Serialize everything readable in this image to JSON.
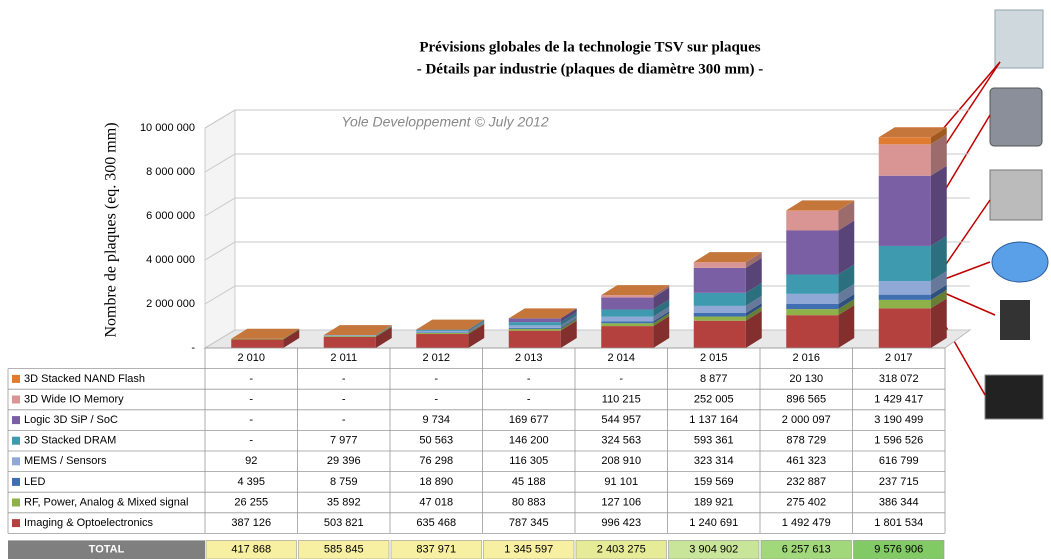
{
  "chart_data": {
    "type": "bar",
    "stacked": true,
    "title": [
      "Prévisions globales de la technologie TSV sur plaques",
      "- Détails par industrie (plaques de diamètre 300 mm) -"
    ],
    "y_label": "Nombre de plaques (eq. 300 mm)",
    "annotation": "Yole Developpement © July 2012",
    "categories": [
      "2 010",
      "2 011",
      "2 012",
      "2 013",
      "2 014",
      "2 015",
      "2 016",
      "2 017"
    ],
    "ylim": [
      0,
      10000000
    ],
    "yticks": [
      {
        "value": 0,
        "label": "-"
      },
      {
        "value": 2000000,
        "label": "2 000 000"
      },
      {
        "value": 4000000,
        "label": "4 000 000"
      },
      {
        "value": 6000000,
        "label": "6 000 000"
      },
      {
        "value": 8000000,
        "label": "8 000 000"
      },
      {
        "value": 10000000,
        "label": "10 000 000"
      }
    ],
    "grid": true,
    "series": [
      {
        "name": "3D Stacked NAND Flash",
        "color": "#e07b2f",
        "values": [
          null,
          null,
          null,
          null,
          null,
          8877,
          20130,
          318072
        ],
        "value_labels": [
          "-",
          "-",
          "-",
          "-",
          "-",
          "8 877",
          "20 130",
          "318 072"
        ]
      },
      {
        "name": "3D Wide IO Memory",
        "color": "#d99594",
        "values": [
          null,
          null,
          null,
          null,
          110215,
          252005,
          896565,
          1429417
        ],
        "value_labels": [
          "-",
          "-",
          "-",
          "-",
          "110 215",
          "252 005",
          "896 565",
          "1 429 417"
        ]
      },
      {
        "name": "Logic 3D SiP / SoC",
        "color": "#7b5fa5",
        "values": [
          null,
          null,
          9734,
          169677,
          544957,
          1137164,
          2000097,
          3190499
        ],
        "value_labels": [
          "-",
          "-",
          "9 734",
          "169 677",
          "544 957",
          "1 137 164",
          "2 000 097",
          "3 190 499"
        ]
      },
      {
        "name": "3D Stacked DRAM",
        "color": "#3d9aaf",
        "values": [
          null,
          7977,
          50563,
          146200,
          324563,
          593361,
          878729,
          1596526
        ],
        "value_labels": [
          "-",
          "7 977",
          "50 563",
          "146 200",
          "324 563",
          "593 361",
          "878 729",
          "1 596 526"
        ]
      },
      {
        "name": "MEMS / Sensors",
        "color": "#8fa8d6",
        "values": [
          92,
          29396,
          76298,
          116305,
          208910,
          323314,
          461323,
          616799
        ],
        "value_labels": [
          "92",
          "29 396",
          "76 298",
          "116 305",
          "208 910",
          "323 314",
          "461 323",
          "616 799"
        ]
      },
      {
        "name": "LED",
        "color": "#3f6fb0",
        "values": [
          4395,
          8759,
          18890,
          45188,
          91101,
          159569,
          232887,
          237715
        ],
        "value_labels": [
          "4 395",
          "8 759",
          "18 890",
          "45 188",
          "91 101",
          "159 569",
          "232 887",
          "237 715"
        ]
      },
      {
        "name": "RF, Power, Analog & Mixed signal",
        "color": "#8fb14a",
        "values": [
          26255,
          35892,
          47018,
          80883,
          127106,
          189921,
          275402,
          386344
        ],
        "value_labels": [
          "26 255",
          "35 892",
          "47 018",
          "80 883",
          "127 106",
          "189 921",
          "275 402",
          "386 344"
        ]
      },
      {
        "name": "Imaging & Optoelectronics",
        "color": "#b5413f",
        "values": [
          387126,
          503821,
          635468,
          787345,
          996423,
          1240691,
          1492479,
          1801534
        ],
        "value_labels": [
          "387 126",
          "503 821",
          "635 468",
          "787 345",
          "996 423",
          "1 240 691",
          "1 492 479",
          "1 801 534"
        ]
      }
    ],
    "totals": {
      "label": "TOTAL",
      "values": [
        417868,
        585845,
        837971,
        1345597,
        2403275,
        3904902,
        6257613,
        9576906
      ],
      "value_labels": [
        "417 868",
        "585 845",
        "837 971",
        "1 345 597",
        "2 403 275",
        "3 904 902",
        "6 257 613",
        "9 576 906"
      ],
      "colors": [
        "#f7f0a3",
        "#f7f0a3",
        "#f7f0a3",
        "#f7f0a3",
        "#e6eb98",
        "#c9e59a",
        "#a2d87c",
        "#82ca66"
      ]
    },
    "top_color": "#c5763a"
  }
}
